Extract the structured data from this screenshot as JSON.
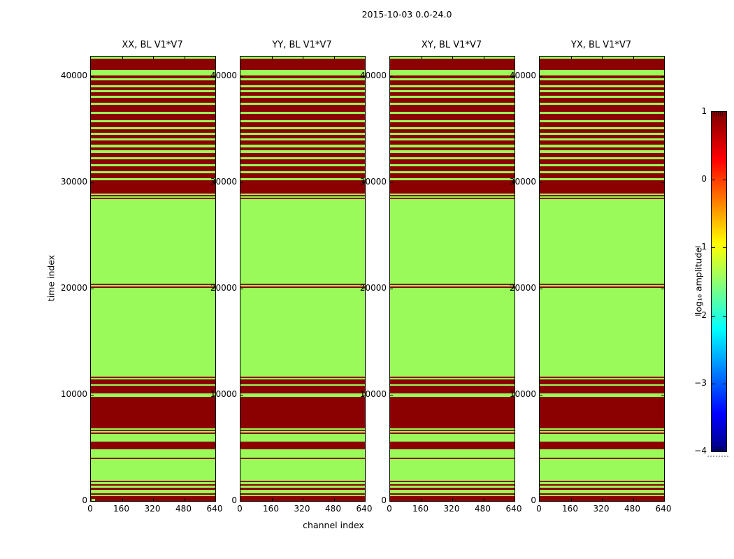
{
  "figure": {
    "title": "2015-10-03 0.0-24.0",
    "xlabel": "channel index",
    "ylabel": "time index"
  },
  "subplots": [
    {
      "id": "xx",
      "title": "XX, BL V1*V7"
    },
    {
      "id": "yy",
      "title": "YY, BL V1*V7"
    },
    {
      "id": "xy",
      "title": "XY, BL V1*V7"
    },
    {
      "id": "yx",
      "title": "YX, BL V1*V7"
    }
  ],
  "axes": {
    "x_tick_labels": [
      "0",
      "160",
      "320",
      "480",
      "640"
    ],
    "y_tick_labels": [
      "0",
      "10000",
      "20000",
      "30000",
      "40000"
    ],
    "x_range": [
      0,
      640
    ],
    "y_range": [
      0,
      41850
    ]
  },
  "colorbar": {
    "label": "log₁₀ amplitude",
    "tick_labels": [
      "1",
      "0",
      "−1",
      "−2",
      "−3",
      "−4"
    ],
    "vmin": -4,
    "vmax": 1,
    "colormap": "jet"
  },
  "chart_data": {
    "type": "heatmap",
    "title": "2015-10-03 0.0-24.0",
    "xlabel": "channel index",
    "ylabel": "time index",
    "x_range": [
      0,
      640
    ],
    "time_max": 41850,
    "panels": [
      "XX, BL V1*V7",
      "YY, BL V1*V7",
      "XY, BL V1*V7",
      "YX, BL V1*V7"
    ],
    "colorbar_label": "log₁₀ amplitude",
    "colorbar_range": [
      -4,
      1
    ],
    "value_colors": {
      "high": "#8B0000",
      "low": "#9AFA5A"
    },
    "value_levels": {
      "high_log10_amplitude": 1.0,
      "low_log10_amplitude": -1.3
    },
    "note": "All four polarization panels show the same horizontal banding versus time index; each band is uniform across all 640 channels. Bands given as [time_start, time_end, level].",
    "bands": [
      [
        0,
        460,
        "high"
      ],
      [
        460,
        590,
        "low"
      ],
      [
        590,
        720,
        "high"
      ],
      [
        720,
        1050,
        "low"
      ],
      [
        1050,
        1250,
        "high"
      ],
      [
        1250,
        1450,
        "low"
      ],
      [
        1450,
        1580,
        "high"
      ],
      [
        1580,
        1780,
        "low"
      ],
      [
        1780,
        1900,
        "high"
      ],
      [
        1900,
        3950,
        "low"
      ],
      [
        3950,
        4080,
        "high"
      ],
      [
        4080,
        4870,
        "low"
      ],
      [
        4870,
        5590,
        "high"
      ],
      [
        5590,
        6320,
        "low"
      ],
      [
        6320,
        6450,
        "high"
      ],
      [
        6450,
        6580,
        "low"
      ],
      [
        6580,
        6710,
        "high"
      ],
      [
        6710,
        6840,
        "low"
      ],
      [
        6840,
        9800,
        "high"
      ],
      [
        9800,
        10130,
        "low"
      ],
      [
        10130,
        10860,
        "high"
      ],
      [
        10860,
        10990,
        "low"
      ],
      [
        10990,
        11440,
        "high"
      ],
      [
        11440,
        11570,
        "low"
      ],
      [
        11570,
        11700,
        "high"
      ],
      [
        11700,
        20060,
        "low"
      ],
      [
        20060,
        20190,
        "high"
      ],
      [
        20190,
        20320,
        "low"
      ],
      [
        20320,
        20450,
        "high"
      ],
      [
        20450,
        28400,
        "low"
      ],
      [
        28400,
        28530,
        "high"
      ],
      [
        28530,
        28660,
        "low"
      ],
      [
        28660,
        28790,
        "high"
      ],
      [
        28790,
        28920,
        "low"
      ],
      [
        28920,
        30200,
        "high"
      ],
      [
        30200,
        30400,
        "low"
      ],
      [
        30400,
        30860,
        "high"
      ],
      [
        30860,
        31060,
        "low"
      ],
      [
        31060,
        31510,
        "high"
      ],
      [
        31510,
        31710,
        "low"
      ],
      [
        31710,
        32170,
        "high"
      ],
      [
        32170,
        32370,
        "low"
      ],
      [
        32370,
        32760,
        "high"
      ],
      [
        32760,
        33020,
        "low"
      ],
      [
        33020,
        33280,
        "high"
      ],
      [
        33280,
        33540,
        "low"
      ],
      [
        33540,
        33940,
        "high"
      ],
      [
        33940,
        34140,
        "low"
      ],
      [
        34140,
        34470,
        "high"
      ],
      [
        34470,
        34670,
        "low"
      ],
      [
        34670,
        35000,
        "high"
      ],
      [
        35000,
        35200,
        "low"
      ],
      [
        35200,
        35660,
        "high"
      ],
      [
        35660,
        35860,
        "low"
      ],
      [
        35860,
        36450,
        "high"
      ],
      [
        36450,
        36650,
        "low"
      ],
      [
        36650,
        37300,
        "high"
      ],
      [
        37300,
        37500,
        "low"
      ],
      [
        37500,
        37980,
        "high"
      ],
      [
        37980,
        38180,
        "low"
      ],
      [
        38180,
        38500,
        "high"
      ],
      [
        38500,
        38700,
        "low"
      ],
      [
        38700,
        38950,
        "high"
      ],
      [
        38950,
        39150,
        "low"
      ],
      [
        39150,
        39600,
        "high"
      ],
      [
        39600,
        39800,
        "low"
      ],
      [
        39800,
        40100,
        "high"
      ],
      [
        40100,
        40600,
        "low"
      ],
      [
        40600,
        41650,
        "high"
      ],
      [
        41650,
        41850,
        "low"
      ]
    ],
    "xx_bottom_left_patch": {
      "channel_range": [
        5,
        20
      ],
      "time_range": [
        30,
        230
      ],
      "value": "low"
    }
  }
}
